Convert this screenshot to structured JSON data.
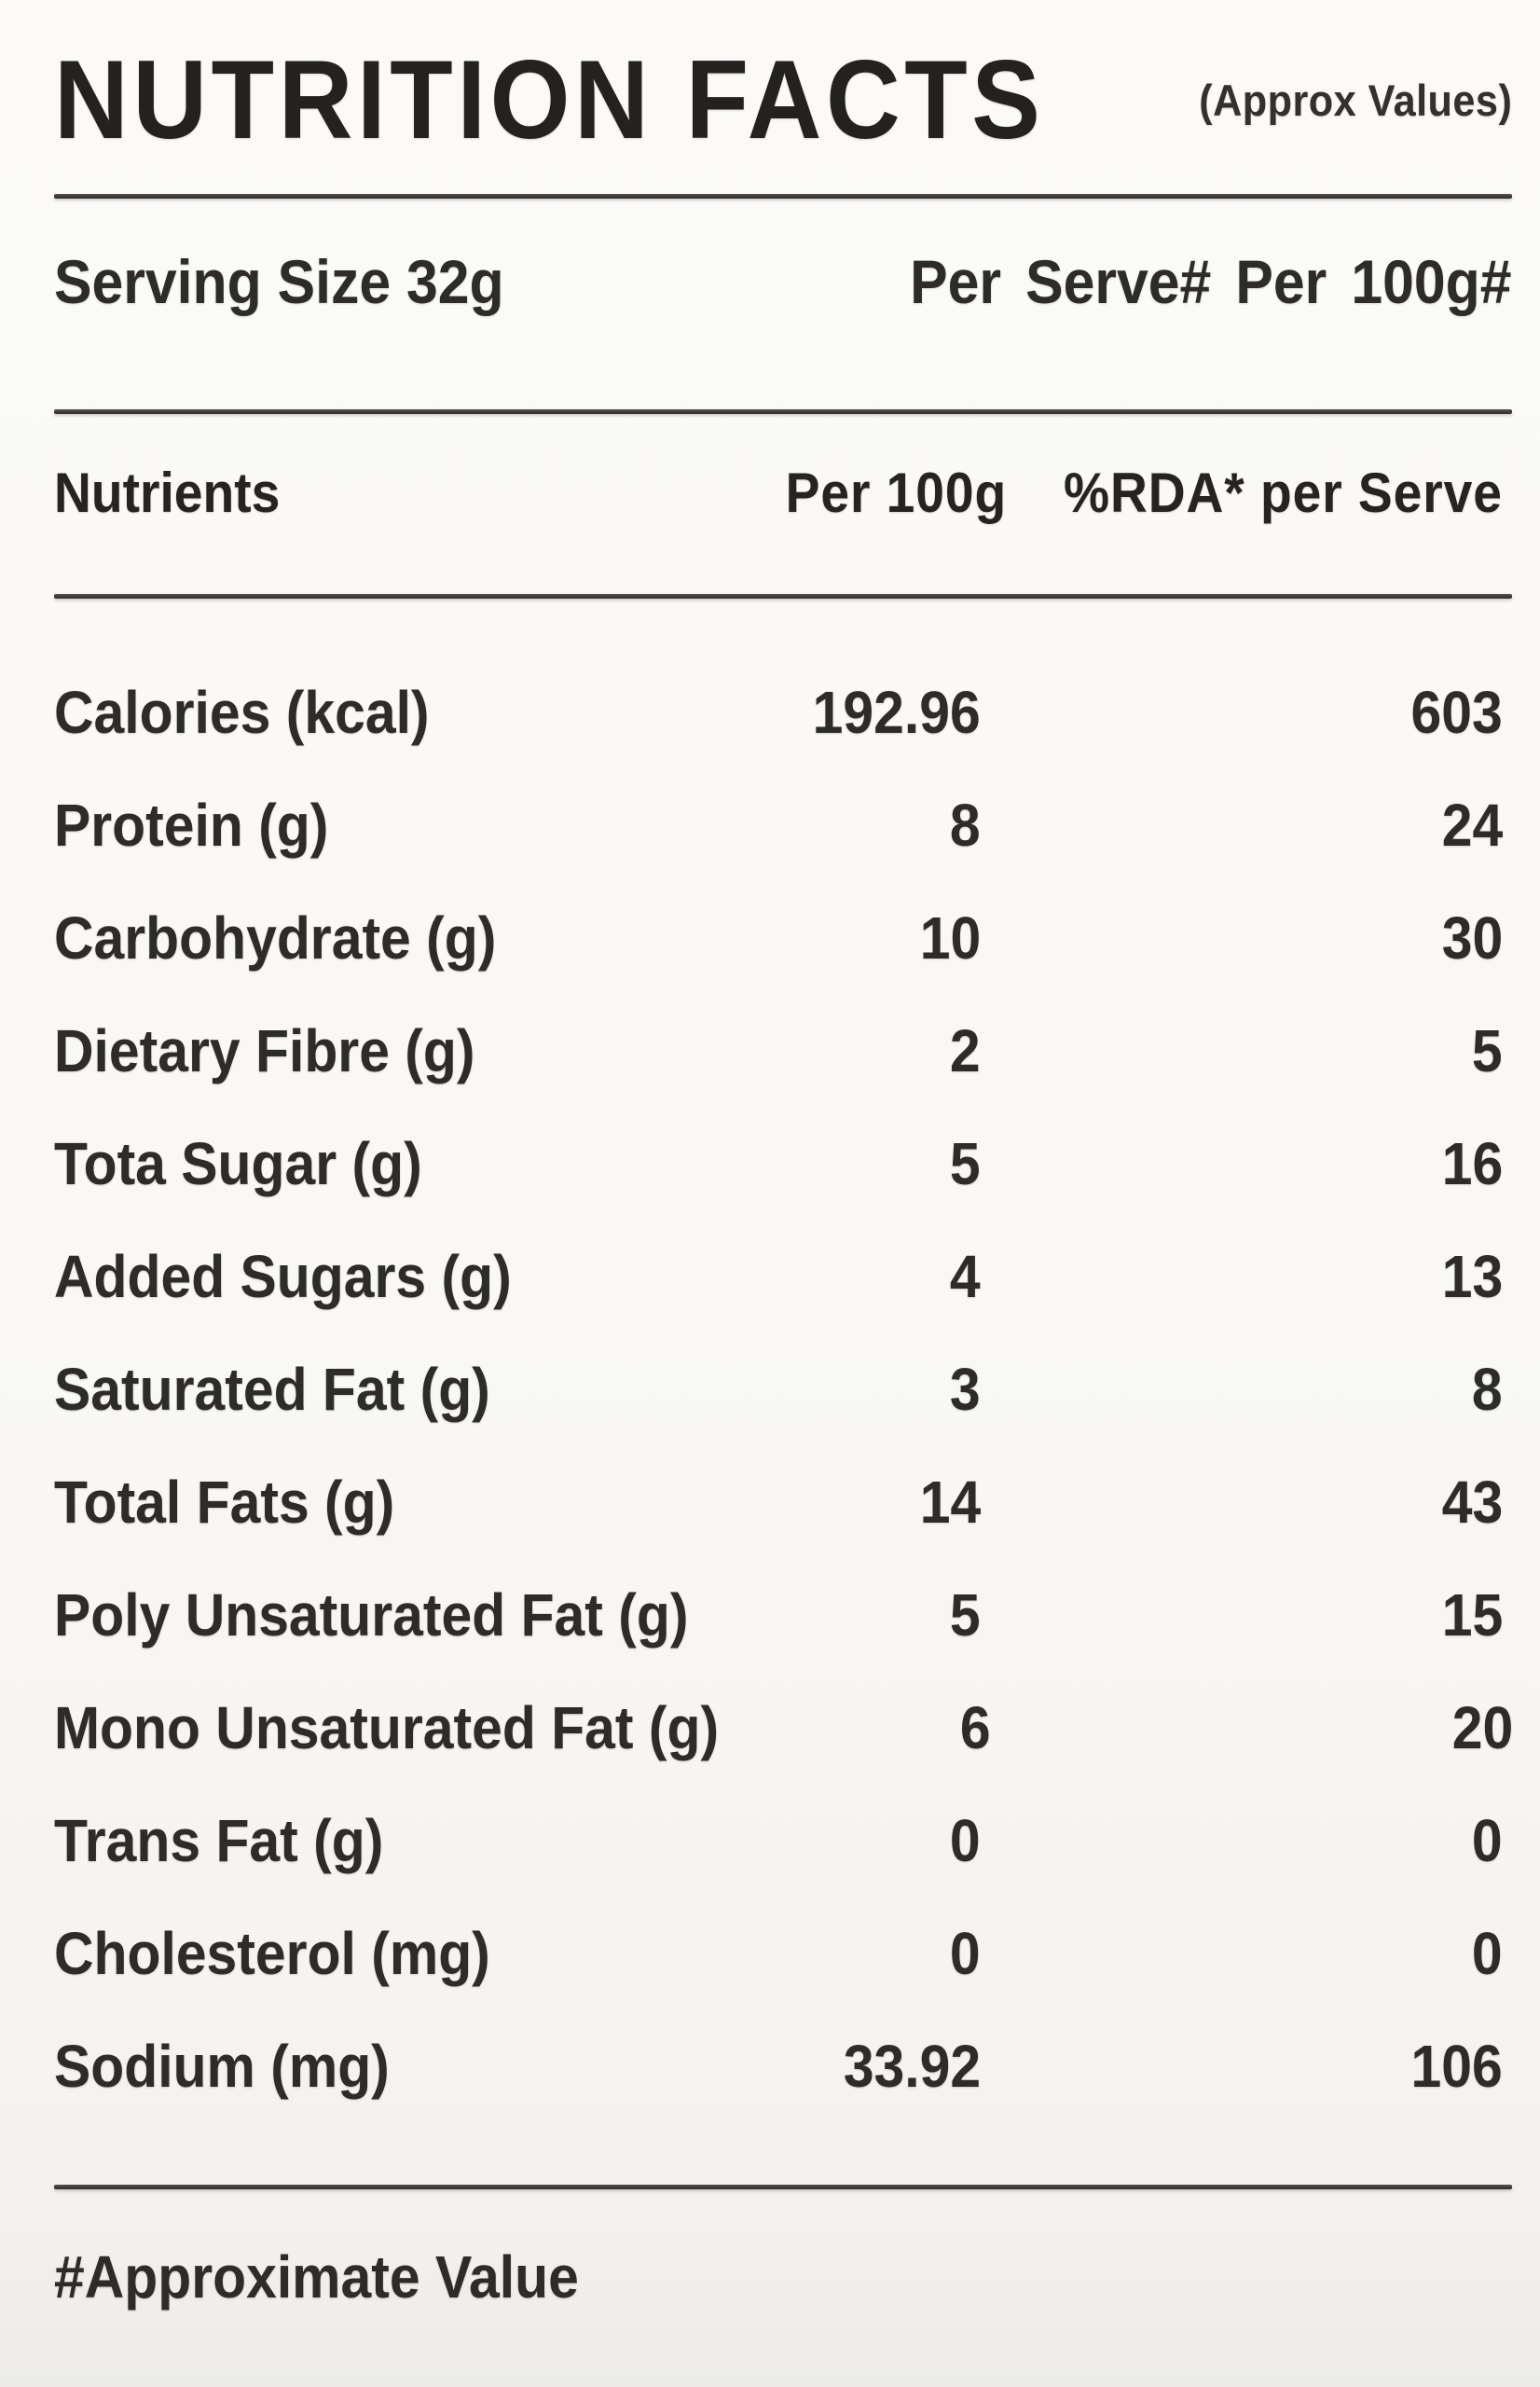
{
  "label": {
    "title": "NUTRITION FACTS",
    "title_note": "(Approx Values)",
    "serving": {
      "size_text": "Serving Size 32g",
      "basis_text": "Per Serve# Per 100g#"
    },
    "table": {
      "headers": {
        "nutrient": "Nutrients",
        "per_100g": "Per 100g",
        "per_serve": "%RDA* per Serve"
      },
      "rows": [
        {
          "nutrient": "Calories (kcal)",
          "per_100g": "192.96",
          "per_serve": "603"
        },
        {
          "nutrient": "Protein (g)",
          "per_100g": "8",
          "per_serve": "24"
        },
        {
          "nutrient": "Carbohydrate (g)",
          "per_100g": "10",
          "per_serve": "30"
        },
        {
          "nutrient": "Dietary Fibre (g)",
          "per_100g": "2",
          "per_serve": "5"
        },
        {
          "nutrient": "Tota Sugar (g)",
          "per_100g": "5",
          "per_serve": "16"
        },
        {
          "nutrient": "Added Sugars (g)",
          "per_100g": "4",
          "per_serve": "13"
        },
        {
          "nutrient": "Saturated Fat (g)",
          "per_100g": "3",
          "per_serve": "8"
        },
        {
          "nutrient": "Total Fats (g)",
          "per_100g": "14",
          "per_serve": "43"
        },
        {
          "nutrient": "Poly Unsaturated Fat (g)",
          "per_100g": "5",
          "per_serve": "15"
        },
        {
          "nutrient": "Mono Unsaturated Fat (g)",
          "per_100g": "6",
          "per_serve": "20"
        },
        {
          "nutrient": "Trans Fat (g)",
          "per_100g": "0",
          "per_serve": "0"
        },
        {
          "nutrient": "Cholesterol (mg)",
          "per_100g": "0",
          "per_serve": "0"
        },
        {
          "nutrient": "Sodium (mg)",
          "per_100g": "33.92",
          "per_serve": "106"
        }
      ]
    },
    "footer_note": "#Approximate Value",
    "colors": {
      "text": "#2c2a27",
      "background": "#f9f8f6",
      "divider": "#2e2c29"
    }
  }
}
